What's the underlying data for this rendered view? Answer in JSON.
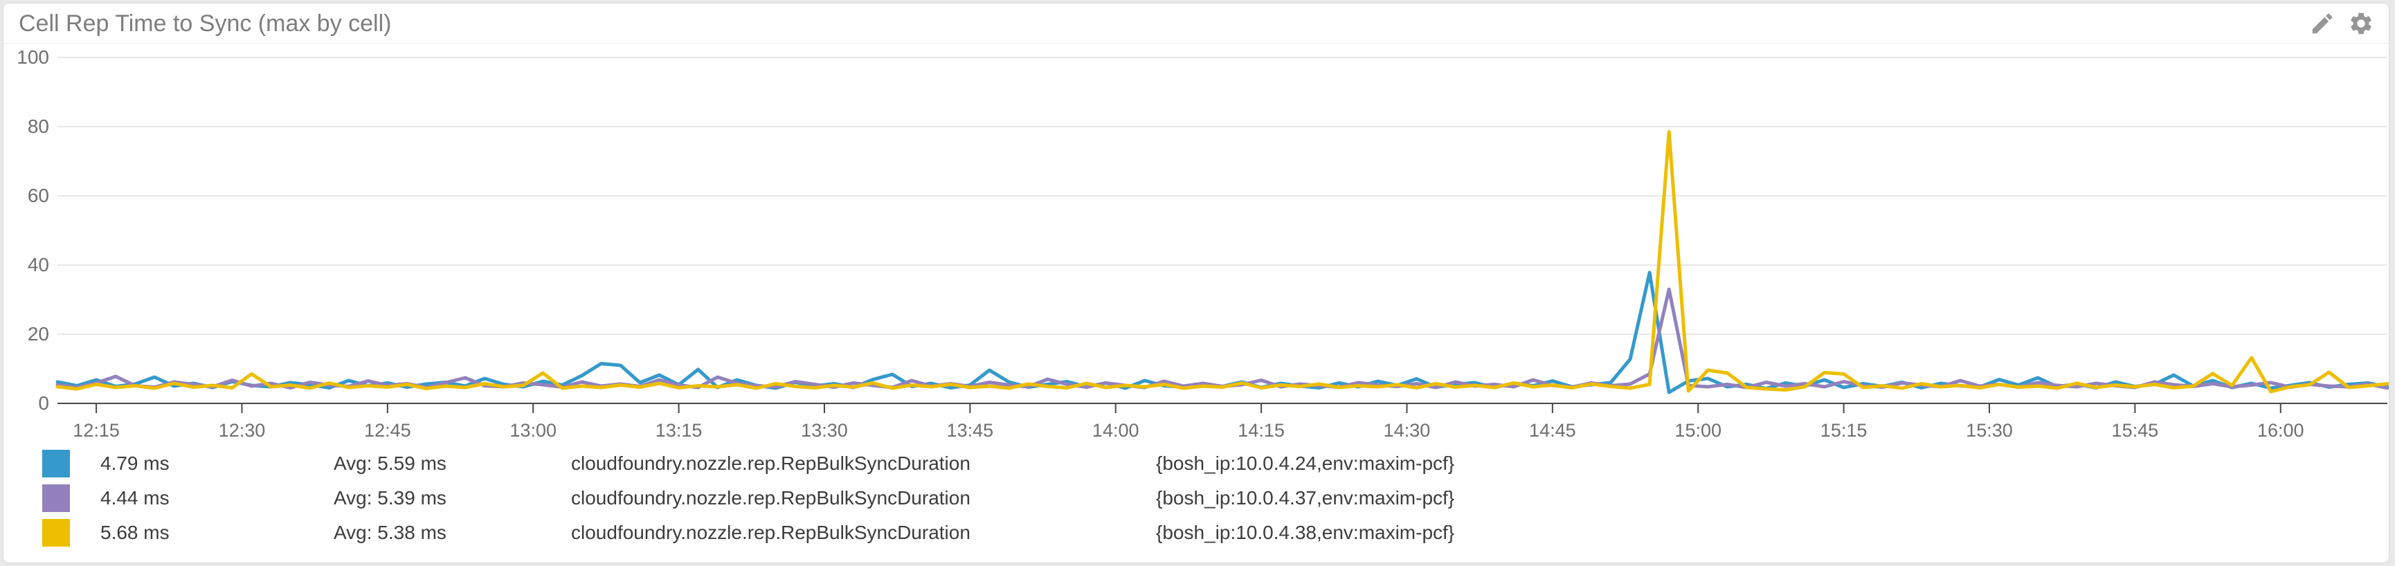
{
  "panel": {
    "title": "Cell Rep Time to Sync (max by cell)",
    "icons": [
      {
        "name": "pencil-icon",
        "meaning": "edit widget"
      },
      {
        "name": "gear-icon",
        "meaning": "widget settings"
      }
    ],
    "colors": {
      "title_text": "#7d7d7d",
      "icon": "#969696",
      "panel_background": "#ffffff",
      "page_background": "#e9e9e9",
      "panel_border": "#d9d9d9",
      "grid_line": "#e7e7e7",
      "axis_line": "#474747",
      "axis_label": "#6e6e6e",
      "legend_text": "#3c3c3c"
    }
  },
  "chart_data": {
    "type": "line",
    "title": "Cell Rep Time to Sync (max by cell)",
    "unit": "ms",
    "grid": true,
    "legend_position": "bottom",
    "x_start_label": "12:11",
    "x_end_label": "16:11",
    "x_interval_min": 2,
    "x_total_min": 240,
    "ylim": [
      0,
      100
    ],
    "yticks": [
      0,
      20,
      40,
      60,
      80,
      100
    ],
    "xticks": [
      {
        "label": "12:15",
        "t": 4
      },
      {
        "label": "12:30",
        "t": 19
      },
      {
        "label": "12:45",
        "t": 34
      },
      {
        "label": "13:00",
        "t": 49
      },
      {
        "label": "13:15",
        "t": 64
      },
      {
        "label": "13:30",
        "t": 79
      },
      {
        "label": "13:45",
        "t": 94
      },
      {
        "label": "14:00",
        "t": 109
      },
      {
        "label": "14:15",
        "t": 124
      },
      {
        "label": "14:30",
        "t": 139
      },
      {
        "label": "14:45",
        "t": 154
      },
      {
        "label": "15:00",
        "t": 169
      },
      {
        "label": "15:15",
        "t": 184
      },
      {
        "label": "15:30",
        "t": 199
      },
      {
        "label": "15:45",
        "t": 214
      },
      {
        "label": "16:00",
        "t": 229
      }
    ],
    "series": [
      {
        "color": "#3599cc",
        "current": "4.79 ms",
        "avg": "Avg: 5.59 ms",
        "metric": "cloudfoundry.nozzle.rep.RepBulkSyncDuration",
        "scope": "{bosh_ip:10.0.4.24,env:maxim-pcf}",
        "values": [
          6.2,
          5.1,
          6.8,
          4.9,
          5.6,
          7.6,
          5.0,
          5.8,
          4.6,
          6.3,
          5.2,
          4.8,
          6.0,
          5.4,
          4.5,
          6.6,
          5.1,
          5.9,
          4.7,
          5.6,
          6.1,
          5.0,
          7.2,
          5.5,
          4.8,
          6.4,
          5.3,
          8.0,
          11.5,
          11.0,
          6.0,
          8.2,
          5.4,
          9.8,
          4.6,
          6.8,
          5.2,
          4.4,
          6.1,
          5.0,
          5.7,
          4.6,
          6.9,
          8.4,
          4.9,
          5.8,
          4.5,
          5.3,
          9.6,
          6.2,
          4.7,
          5.5,
          6.3,
          4.8,
          5.9,
          4.4,
          6.6,
          5.1,
          4.7,
          5.6,
          4.9,
          6.2,
          4.6,
          5.8,
          5.0,
          4.5,
          5.9,
          4.8,
          6.4,
          5.2,
          7.1,
          4.7,
          5.5,
          6.0,
          4.6,
          5.8,
          5.1,
          6.5,
          4.8,
          5.4,
          6.0,
          12.8,
          37.8,
          3.2,
          6.5,
          7.2,
          4.8,
          5.5,
          4.3,
          5.9,
          5.0,
          6.8,
          4.6,
          5.7,
          4.9,
          6.1,
          4.5,
          5.8,
          5.1,
          4.7,
          6.9,
          5.3,
          7.4,
          4.8,
          5.6,
          4.5,
          6.2,
          4.9,
          5.5,
          8.2,
          5.0,
          6.6,
          4.6,
          5.8,
          4.4,
          5.2,
          6.0,
          4.7,
          5.5,
          5.9,
          4.79
        ]
      },
      {
        "color": "#9381bd",
        "current": "4.44 ms",
        "avg": "Avg: 5.39 ms",
        "metric": "cloudfoundry.nozzle.rep.RepBulkSyncDuration",
        "scope": "{bosh_ip:10.0.4.37,env:maxim-pcf}",
        "values": [
          5.4,
          4.6,
          5.9,
          7.8,
          5.1,
          4.7,
          6.2,
          5.5,
          4.8,
          6.7,
          5.0,
          5.8,
          4.5,
          6.1,
          5.3,
          4.9,
          6.5,
          5.2,
          5.7,
          4.6,
          6.0,
          7.4,
          5.1,
          4.8,
          5.9,
          5.4,
          4.7,
          6.2,
          5.0,
          5.6,
          4.9,
          6.8,
          5.3,
          4.6,
          7.6,
          5.8,
          5.1,
          4.8,
          6.3,
          5.5,
          4.7,
          5.9,
          5.2,
          4.6,
          6.6,
          5.0,
          5.7,
          4.9,
          6.1,
          5.3,
          4.8,
          7.0,
          5.5,
          4.7,
          5.9,
          5.2,
          4.6,
          6.4,
          5.0,
          5.8,
          4.9,
          5.4,
          6.7,
          4.8,
          5.6,
          5.1,
          4.7,
          6.0,
          5.3,
          4.9,
          5.7,
          4.6,
          6.2,
          5.0,
          5.5,
          4.8,
          6.8,
          5.2,
          4.7,
          5.9,
          5.1,
          5.6,
          8.5,
          33.0,
          5.2,
          4.8,
          5.5,
          4.6,
          6.1,
          5.0,
          5.7,
          4.8,
          6.3,
          5.1,
          4.7,
          5.9,
          5.3,
          4.8,
          6.6,
          5.0,
          5.5,
          4.7,
          6.0,
          5.2,
          4.8,
          5.8,
          5.1,
          4.6,
          6.2,
          5.4,
          4.9,
          5.7,
          4.8,
          5.3,
          6.0,
          4.7,
          5.5,
          5.0,
          4.8,
          5.6,
          4.44
        ]
      },
      {
        "color": "#edbe01",
        "current": "5.68 ms",
        "avg": "Avg: 5.38 ms",
        "metric": "cloudfoundry.nozzle.rep.RepBulkSyncDuration",
        "scope": "{bosh_ip:10.0.4.38,env:maxim-pcf}",
        "values": [
          4.8,
          4.2,
          5.5,
          4.6,
          5.1,
          4.4,
          5.8,
          4.7,
          5.2,
          4.5,
          8.5,
          4.8,
          5.3,
          4.4,
          5.9,
          4.6,
          5.1,
          4.7,
          5.5,
          4.3,
          5.0,
          4.6,
          5.7,
          4.8,
          5.2,
          8.8,
          4.4,
          5.0,
          4.6,
          5.3,
          4.7,
          5.8,
          4.5,
          5.1,
          4.8,
          5.4,
          4.4,
          5.7,
          4.9,
          4.5,
          5.2,
          4.7,
          5.9,
          4.4,
          5.3,
          4.8,
          5.5,
          4.6,
          5.0,
          4.4,
          5.6,
          4.9,
          4.5,
          5.8,
          4.6,
          5.2,
          4.8,
          5.5,
          4.4,
          5.0,
          4.7,
          5.9,
          4.5,
          5.3,
          4.9,
          5.6,
          4.6,
          5.1,
          4.8,
          5.4,
          4.5,
          5.7,
          4.7,
          5.2,
          4.6,
          5.9,
          4.8,
          5.3,
          4.5,
          5.6,
          4.9,
          4.4,
          5.5,
          78.5,
          3.6,
          9.6,
          8.8,
          4.6,
          4.2,
          3.9,
          4.8,
          8.9,
          8.5,
          4.6,
          5.1,
          4.4,
          5.7,
          4.8,
          5.2,
          4.5,
          5.5,
          4.7,
          5.0,
          4.4,
          5.8,
          4.6,
          5.3,
          4.8,
          5.5,
          4.5,
          5.0,
          8.6,
          5.2,
          13.2,
          3.4,
          4.8,
          5.4,
          9.0,
          4.6,
          5.1,
          5.68
        ]
      }
    ]
  }
}
